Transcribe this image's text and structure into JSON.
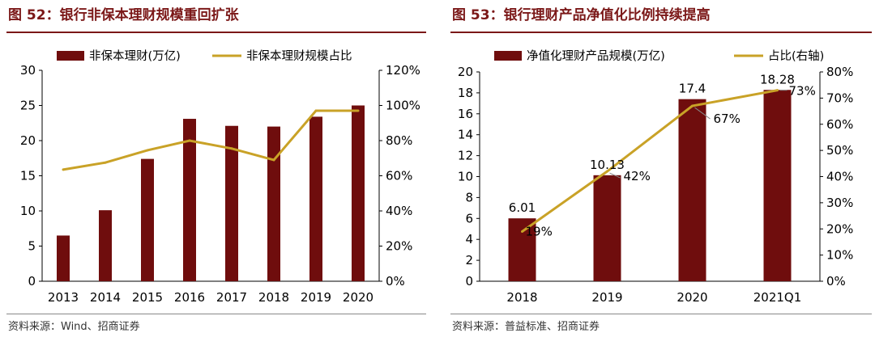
{
  "colors": {
    "bar": "#6f0d0d",
    "line": "#c9a227",
    "title": "#7b1818"
  },
  "left": {
    "title": "图 52：银行非保本理财规模重回扩张",
    "source": "资料来源：Wind、招商证券"
  },
  "right": {
    "title": "图 53：银行理财产品净值化比例持续提高",
    "source": "资料来源：普益标准、招商证券"
  },
  "chart_data": [
    {
      "type": "bar",
      "categories": [
        "2013",
        "2014",
        "2015",
        "2016",
        "2017",
        "2018",
        "2019",
        "2020"
      ],
      "series": [
        {
          "name": "非保本理财(万亿)",
          "type": "bar",
          "axis": "left",
          "values": [
            6.5,
            10.1,
            17.4,
            23.1,
            22.1,
            22.0,
            23.4,
            25.0
          ]
        },
        {
          "name": "非保本理财规模占比",
          "type": "line",
          "axis": "right",
          "values": [
            63.5,
            67.5,
            74.5,
            80.0,
            75.5,
            69.0,
            97.0,
            97.0
          ]
        }
      ],
      "ylim": [
        0,
        30
      ],
      "y_ticks": [
        "0",
        "5",
        "10",
        "15",
        "20",
        "25",
        "30"
      ],
      "y2lim": [
        0,
        120
      ],
      "y2_ticks": [
        "0%",
        "20%",
        "40%",
        "60%",
        "80%",
        "100%",
        "120%"
      ],
      "legend_position": "top"
    },
    {
      "type": "bar",
      "categories": [
        "2018",
        "2019",
        "2020",
        "2021Q1"
      ],
      "series": [
        {
          "name": "净值化理财产品规模(万亿)",
          "type": "bar",
          "axis": "left",
          "values": [
            6.01,
            10.13,
            17.4,
            18.28
          ],
          "labels": [
            "6.01",
            "10.13",
            "17.4",
            "18.28"
          ]
        },
        {
          "name": "占比(右轴)",
          "type": "line",
          "axis": "right",
          "values": [
            19,
            42,
            67,
            73
          ],
          "labels": [
            "19%",
            "42%",
            "67%",
            "73%"
          ]
        }
      ],
      "ylim": [
        0,
        20
      ],
      "y_ticks": [
        "0",
        "2",
        "4",
        "6",
        "8",
        "10",
        "12",
        "14",
        "16",
        "18",
        "20"
      ],
      "y2lim": [
        0,
        80
      ],
      "y2_ticks": [
        "0%",
        "10%",
        "20%",
        "30%",
        "40%",
        "50%",
        "60%",
        "70%",
        "80%"
      ],
      "legend_position": "top"
    }
  ]
}
